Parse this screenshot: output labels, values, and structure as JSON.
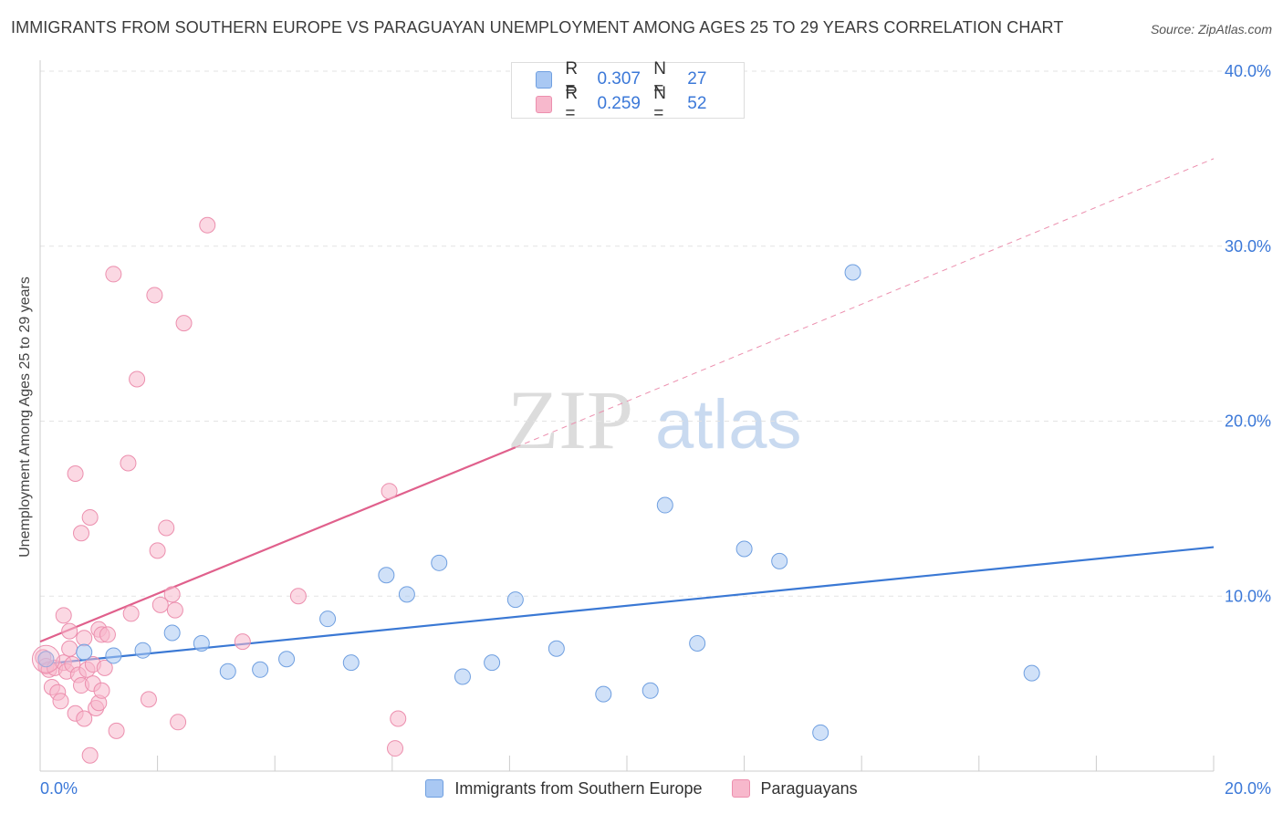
{
  "title": "IMMIGRANTS FROM SOUTHERN EUROPE VS PARAGUAYAN UNEMPLOYMENT AMONG AGES 25 TO 29 YEARS CORRELATION CHART",
  "source": "Source: ZipAtlas.com",
  "watermark": {
    "zip": "ZIP",
    "atlas": "atlas"
  },
  "legend_top": {
    "series": [
      {
        "r_label": "R =",
        "r_value": "0.307",
        "n_label": "N =",
        "n_value": "27"
      },
      {
        "r_label": "R =",
        "r_value": "0.259",
        "n_label": "N =",
        "n_value": "52"
      }
    ]
  },
  "legend_bottom": {
    "items": [
      {
        "label": "Immigrants from Southern Europe"
      },
      {
        "label": "Paraguayans"
      }
    ]
  },
  "colors": {
    "blue_fill": "#a9c8f3",
    "blue_stroke": "#6f9fe0",
    "blue_line": "#3a78d4",
    "pink_fill": "#f7b8cc",
    "pink_stroke": "#ec8fae",
    "pink_line": "#e0608c",
    "axis_text": "#3b78d8",
    "grid": "#e3e3e3"
  },
  "chart_data": {
    "type": "scatter",
    "title": "IMMIGRANTS FROM SOUTHERN EUROPE VS PARAGUAYAN UNEMPLOYMENT AMONG AGES 25 TO 29 YEARS CORRELATION CHART",
    "xlabel": "",
    "ylabel": "Unemployment Among Ages 25 to 29 years",
    "xlim": [
      0,
      20
    ],
    "ylim": [
      0,
      40
    ],
    "x_tick_labels": [
      "0.0%",
      "20.0%"
    ],
    "y_ticks": [
      10,
      20,
      30,
      40
    ],
    "y_tick_labels": [
      "10.0%",
      "20.0%",
      "30.0%",
      "40.0%"
    ],
    "series": [
      {
        "name": "Immigrants from Southern Europe",
        "color": "blue",
        "points": [
          [
            0.1,
            6.4
          ],
          [
            0.75,
            6.8
          ],
          [
            1.25,
            6.6
          ],
          [
            1.75,
            6.9
          ],
          [
            2.25,
            7.9
          ],
          [
            2.75,
            7.3
          ],
          [
            3.2,
            5.7
          ],
          [
            3.75,
            5.8
          ],
          [
            4.2,
            6.4
          ],
          [
            4.9,
            8.7
          ],
          [
            5.3,
            6.2
          ],
          [
            5.9,
            11.2
          ],
          [
            6.25,
            10.1
          ],
          [
            6.8,
            11.9
          ],
          [
            7.2,
            5.4
          ],
          [
            7.7,
            6.2
          ],
          [
            8.1,
            9.8
          ],
          [
            8.8,
            7.0
          ],
          [
            9.6,
            4.4
          ],
          [
            10.4,
            4.6
          ],
          [
            10.65,
            15.2
          ],
          [
            11.2,
            7.3
          ],
          [
            12.0,
            12.7
          ],
          [
            12.6,
            12.0
          ],
          [
            13.3,
            2.2
          ],
          [
            13.85,
            28.5
          ],
          [
            16.9,
            5.6
          ]
        ],
        "trend": {
          "x0": 0,
          "y0": 6.1,
          "x1": 20,
          "y1": 12.8,
          "style": "solid"
        }
      },
      {
        "name": "Paraguayans",
        "color": "pink",
        "points": [
          [
            0.05,
            6.5
          ],
          [
            0.1,
            6.0
          ],
          [
            0.15,
            5.8
          ],
          [
            0.2,
            4.8
          ],
          [
            0.25,
            5.9
          ],
          [
            0.3,
            4.5
          ],
          [
            0.35,
            4.0
          ],
          [
            0.4,
            6.2
          ],
          [
            0.4,
            8.9
          ],
          [
            0.45,
            5.7
          ],
          [
            0.5,
            7.0
          ],
          [
            0.5,
            8.0
          ],
          [
            0.55,
            6.1
          ],
          [
            0.6,
            17.0
          ],
          [
            0.6,
            3.3
          ],
          [
            0.65,
            5.5
          ],
          [
            0.7,
            13.6
          ],
          [
            0.7,
            4.9
          ],
          [
            0.75,
            3.0
          ],
          [
            0.75,
            7.6
          ],
          [
            0.8,
            5.8
          ],
          [
            0.85,
            14.5
          ],
          [
            0.85,
            0.9
          ],
          [
            0.9,
            5.0
          ],
          [
            0.9,
            6.1
          ],
          [
            0.95,
            3.6
          ],
          [
            1.0,
            3.9
          ],
          [
            1.0,
            8.1
          ],
          [
            1.05,
            4.6
          ],
          [
            1.05,
            7.8
          ],
          [
            1.1,
            5.9
          ],
          [
            1.15,
            7.8
          ],
          [
            1.25,
            28.4
          ],
          [
            1.3,
            2.3
          ],
          [
            1.5,
            17.6
          ],
          [
            1.55,
            9.0
          ],
          [
            1.65,
            22.4
          ],
          [
            1.85,
            4.1
          ],
          [
            1.95,
            27.2
          ],
          [
            2.0,
            12.6
          ],
          [
            2.05,
            9.5
          ],
          [
            2.15,
            13.9
          ],
          [
            2.25,
            10.1
          ],
          [
            2.3,
            9.2
          ],
          [
            2.35,
            2.8
          ],
          [
            2.45,
            25.6
          ],
          [
            2.85,
            31.2
          ],
          [
            3.45,
            7.4
          ],
          [
            4.4,
            10.0
          ],
          [
            5.95,
            16.0
          ],
          [
            6.05,
            1.3
          ],
          [
            6.1,
            3.0
          ]
        ],
        "trend": {
          "x0": 0,
          "y0": 7.4,
          "x1": 8.1,
          "y1": 18.5,
          "style": "solid",
          "extension": {
            "x1": 20,
            "y1": 35.0,
            "style": "dashed"
          }
        }
      }
    ]
  }
}
